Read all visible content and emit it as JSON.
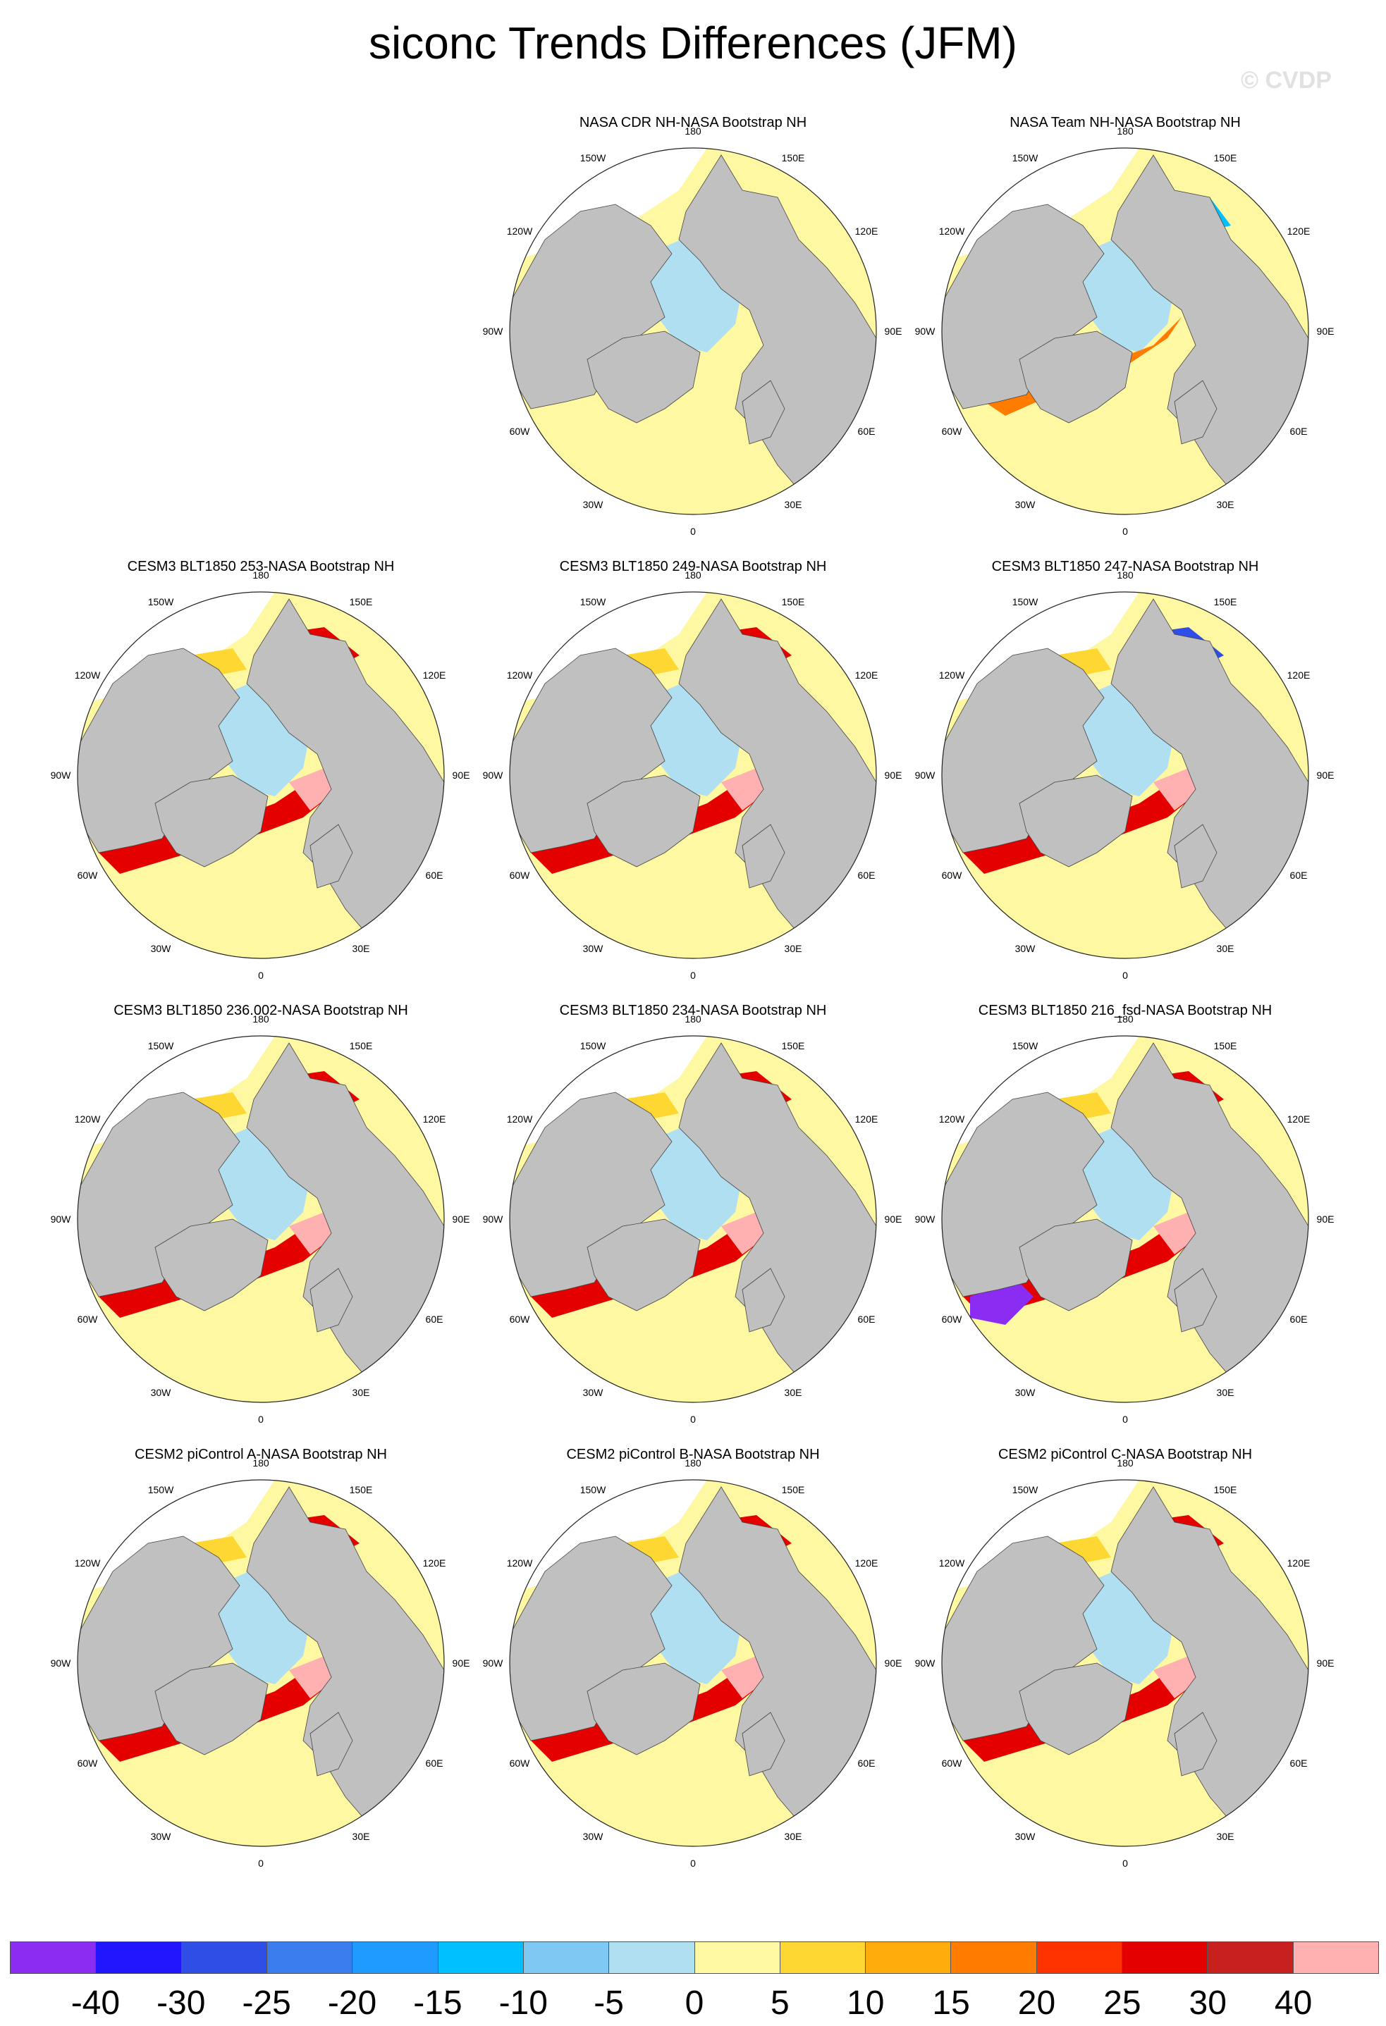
{
  "title": "siconc Trends Differences (JFM)",
  "watermark": "© CVDP",
  "lon_labels": [
    "180",
    "150E",
    "120E",
    "90E",
    "60E",
    "30E",
    "0",
    "30W",
    "60W",
    "90W",
    "120W",
    "150W"
  ],
  "panels": [
    {
      "title": "",
      "empty": true
    },
    {
      "title": "NASA CDR NH-NASA Bootstrap NH"
    },
    {
      "title": "NASA Team NH-NASA Bootstrap NH"
    },
    {
      "title": "CESM3 BLT1850 253-NASA Bootstrap NH"
    },
    {
      "title": "CESM3 BLT1850 249-NASA Bootstrap NH"
    },
    {
      "title": "CESM3 BLT1850 247-NASA Bootstrap NH"
    },
    {
      "title": "CESM3 BLT1850 236.002-NASA Bootstrap NH"
    },
    {
      "title": "CESM3 BLT1850 234-NASA Bootstrap NH"
    },
    {
      "title": "CESM3 BLT1850 216_fsd-NASA Bootstrap NH"
    },
    {
      "title": "CESM2 piControl A-NASA Bootstrap NH"
    },
    {
      "title": "CESM2 piControl B-NASA Bootstrap NH"
    },
    {
      "title": "CESM2 piControl C-NASA Bootstrap NH"
    }
  ],
  "colorbar": {
    "labels": [
      "-40",
      "-30",
      "-25",
      "-20",
      "-15",
      "-10",
      "-5",
      "0",
      "5",
      "10",
      "15",
      "20",
      "25",
      "30",
      "40"
    ],
    "colors": [
      "#8b2cf3",
      "#2015ff",
      "#2f4ee5",
      "#3b7ded",
      "#1f9bff",
      "#00c0ff",
      "#7ec8f3",
      "#b0dff1",
      "#fff8a2",
      "#ffd733",
      "#ffac0c",
      "#ff7c00",
      "#ff3300",
      "#e50000",
      "#c8201e",
      "#ffb1b1"
    ]
  },
  "colors": {
    "land": "#c0c0c0",
    "ocean_neutral": "#fff8a2",
    "missing": "#ffffff",
    "ice_low": "#b0dff1"
  }
}
